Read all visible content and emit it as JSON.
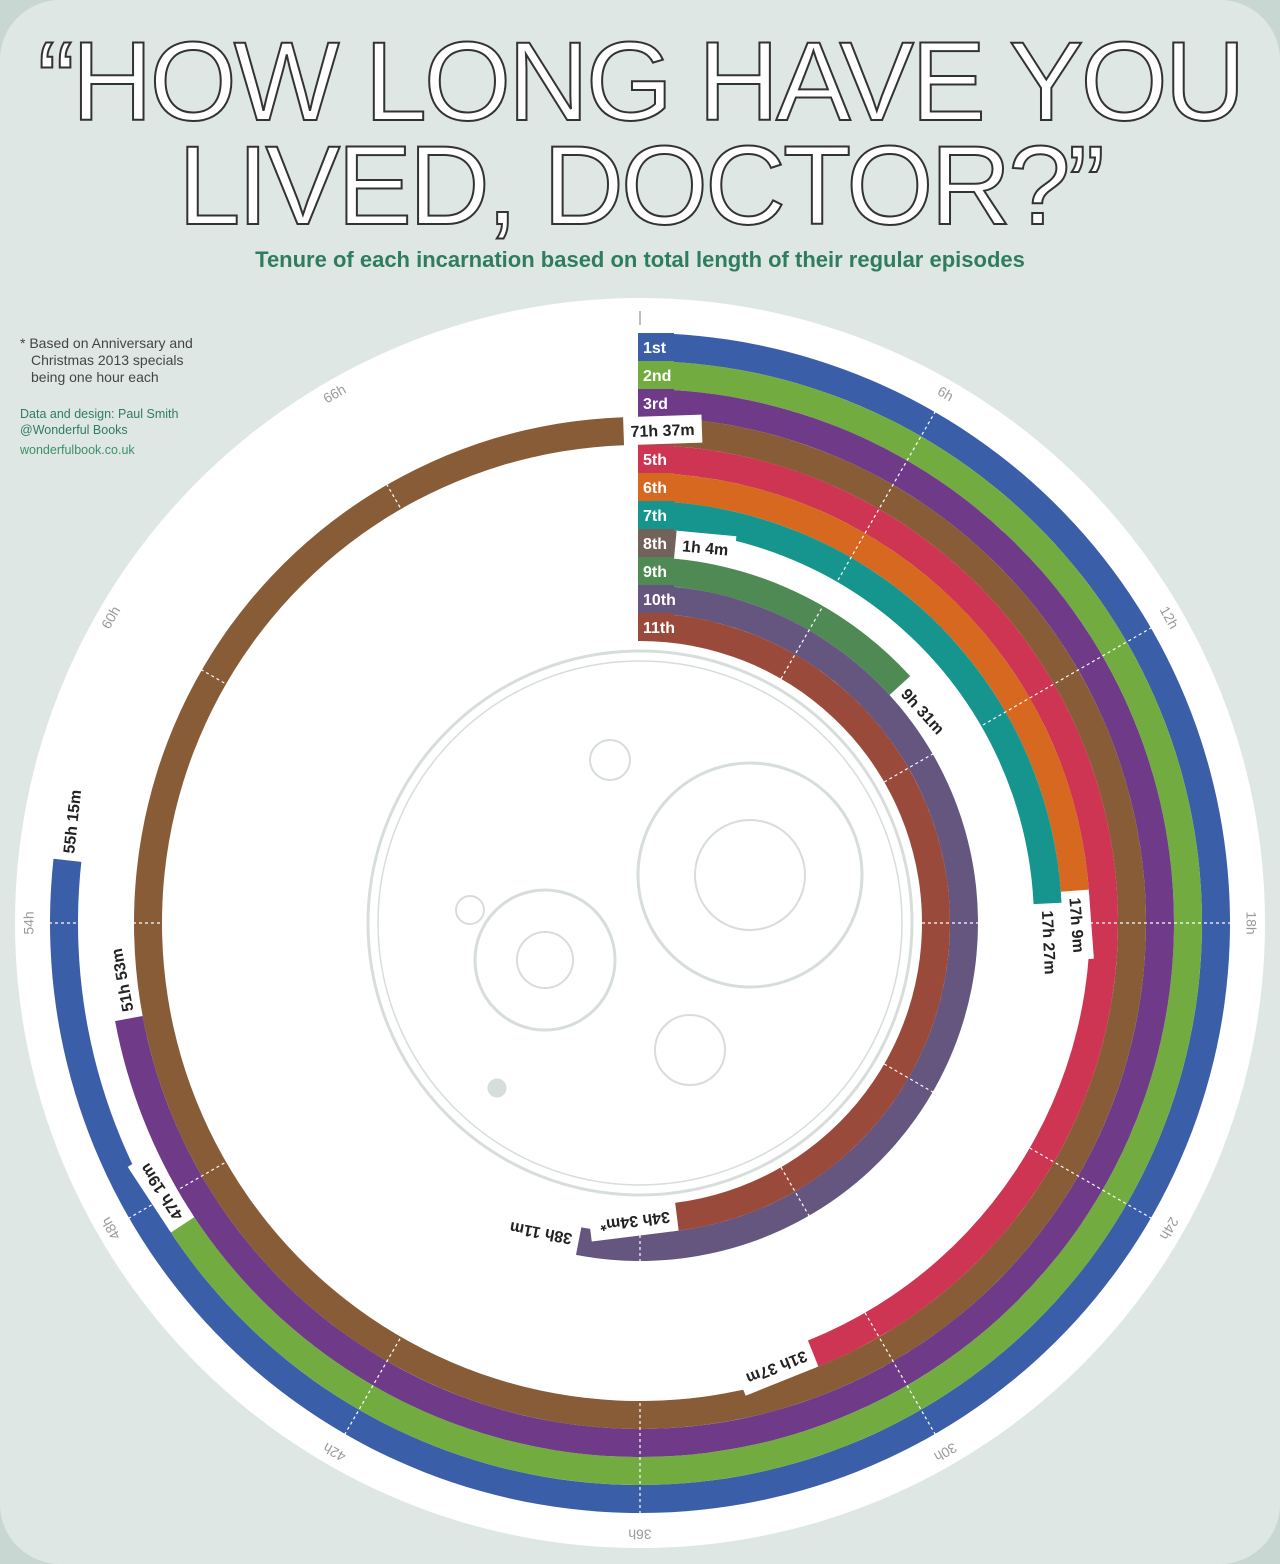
{
  "title_lines": [
    "“HOW LONG HAVE YOU",
    "LIVED, DOCTOR?”"
  ],
  "subtitle": "Tenure of each incarnation based on total length of their regular episodes",
  "note": [
    "* Based on Anniversary and",
    "Christmas 2013 specials",
    "being one hour each"
  ],
  "credits": {
    "line1": "Data and design: Paul Smith",
    "line2": "@Wonderful Books",
    "site": "wonderfulbook.co.uk"
  },
  "colors": {
    "background": "#dfe7e4",
    "outer_frame": "#c9d7d2",
    "title_stroke": "#333333",
    "subtitle": "#2e7d5f"
  },
  "chart_data": {
    "type": "radial-bar",
    "unit": "hours",
    "full_circle_hours": 72,
    "ticks": [
      "6h",
      "12h",
      "18h",
      "24h",
      "30h",
      "36h",
      "42h",
      "48h",
      "54h",
      "60h",
      "66h"
    ],
    "tick_values": [
      6,
      12,
      18,
      24,
      30,
      36,
      42,
      48,
      54,
      60,
      66
    ],
    "series": [
      {
        "name": "1st",
        "value_hours": 55.25,
        "label": "55h 15m",
        "color": "#3b5ea8"
      },
      {
        "name": "2nd",
        "value_hours": 47.317,
        "label": "47h 19m",
        "color": "#72ac41"
      },
      {
        "name": "3rd",
        "value_hours": 51.883,
        "label": "51h 53m",
        "color": "#6f3a87"
      },
      {
        "name": "4th",
        "value_hours": 71.617,
        "label": "71h 37m",
        "color": "#875c36"
      },
      {
        "name": "5th",
        "value_hours": 31.617,
        "label": "31h 37m",
        "color": "#cd3552"
      },
      {
        "name": "6th",
        "value_hours": 17.15,
        "label": "17h 9m",
        "color": "#d6691f"
      },
      {
        "name": "7th",
        "value_hours": 17.45,
        "label": "17h 27m",
        "color": "#15958e"
      },
      {
        "name": "8th",
        "value_hours": 1.067,
        "label": "1h 4m",
        "color": "#736259"
      },
      {
        "name": "9th",
        "value_hours": 9.517,
        "label": "9h 31m",
        "color": "#4f8a55"
      },
      {
        "name": "10th",
        "value_hours": 38.183,
        "label": "38h 11m",
        "color": "#655680"
      },
      {
        "name": "11th",
        "value_hours": 34.567,
        "label": "34h 34m*",
        "color": "#9a4a3a"
      }
    ]
  }
}
